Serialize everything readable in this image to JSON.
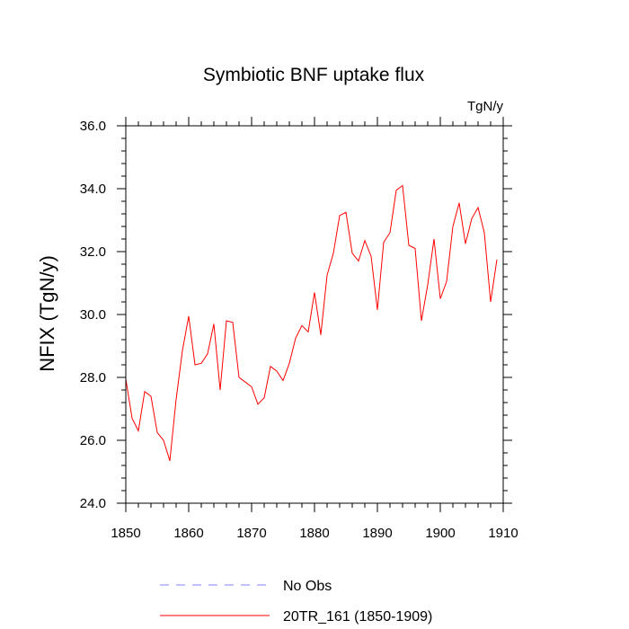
{
  "chart_data": {
    "type": "line",
    "title": "Symbiotic BNF uptake flux",
    "units": "TgN/y",
    "xlabel": "",
    "ylabel": "NFIX  (TgN/y)",
    "xlim": [
      1850,
      1910
    ],
    "ylim": [
      24.0,
      36.0
    ],
    "x_ticks": [
      1850,
      1860,
      1870,
      1880,
      1890,
      1900,
      1910
    ],
    "x_tick_labels": [
      "1850",
      "1860",
      "1870",
      "1880",
      "1890",
      "1900",
      "1910"
    ],
    "y_ticks": [
      24.0,
      26.0,
      28.0,
      30.0,
      32.0,
      34.0,
      36.0
    ],
    "y_tick_labels": [
      "24.0",
      "26.0",
      "28.0",
      "30.0",
      "32.0",
      "34.0",
      "36.0"
    ],
    "grid": false,
    "legend_position": "bottom",
    "series": [
      {
        "name": "20TR_161 (1850-1909)",
        "color": "#ff0000",
        "style": "solid",
        "x": [
          1850,
          1851,
          1852,
          1853,
          1854,
          1855,
          1856,
          1857,
          1858,
          1859,
          1860,
          1861,
          1862,
          1863,
          1864,
          1865,
          1866,
          1867,
          1868,
          1869,
          1870,
          1871,
          1872,
          1873,
          1874,
          1875,
          1876,
          1877,
          1878,
          1879,
          1880,
          1881,
          1882,
          1883,
          1884,
          1885,
          1886,
          1887,
          1888,
          1889,
          1890,
          1891,
          1892,
          1893,
          1894,
          1895,
          1896,
          1897,
          1898,
          1899,
          1900,
          1901,
          1902,
          1903,
          1904,
          1905,
          1906,
          1907,
          1908,
          1909
        ],
        "values": [
          27.95,
          26.7,
          26.3,
          27.55,
          27.4,
          26.25,
          26.0,
          25.35,
          27.3,
          28.85,
          29.95,
          28.4,
          28.45,
          28.75,
          29.7,
          27.6,
          29.8,
          29.75,
          28.0,
          27.85,
          27.7,
          27.15,
          27.35,
          28.35,
          28.2,
          27.9,
          28.45,
          29.25,
          29.65,
          29.45,
          30.7,
          29.35,
          31.25,
          31.95,
          33.15,
          33.25,
          31.95,
          31.7,
          32.35,
          31.85,
          30.15,
          32.3,
          32.6,
          33.95,
          34.1,
          32.2,
          32.1,
          29.8,
          30.95,
          32.4,
          30.5,
          31.05,
          32.8,
          33.55,
          32.25,
          33.05,
          33.4,
          32.6,
          30.4,
          31.75
        ]
      },
      {
        "name": "No Obs",
        "color": "#8080ff",
        "style": "dashed",
        "x": [],
        "values": []
      }
    ]
  }
}
